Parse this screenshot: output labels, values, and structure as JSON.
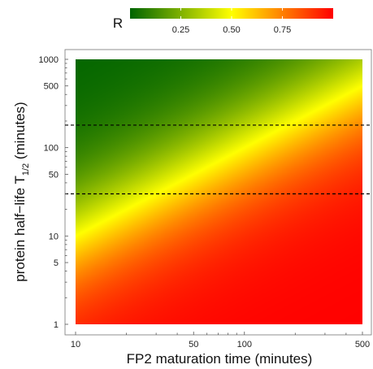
{
  "chart_data": {
    "type": "heatmap",
    "title": "",
    "colorbar": {
      "title": "R",
      "ticks": [
        0.25,
        0.5,
        0.75
      ],
      "tick_labels": [
        "0.25",
        "0.50",
        "0.75"
      ],
      "range": [
        0,
        1
      ],
      "colors": [
        "#006400",
        "#ffff00",
        "#ff0000"
      ]
    },
    "x_axis": {
      "label": "FP2 maturation time (minutes)",
      "scale": "log",
      "range": [
        10,
        500
      ],
      "ticks": [
        10,
        50,
        100,
        500
      ],
      "tick_labels": [
        "10",
        "50",
        "100",
        "500"
      ]
    },
    "y_axis": {
      "label_main": "protein half−life T",
      "label_sub": "1/2",
      "label_tail": " (minutes)",
      "scale": "log",
      "range": [
        1,
        1000
      ],
      "ticks": [
        1,
        5,
        10,
        50,
        100,
        500,
        1000
      ],
      "tick_labels": [
        "1",
        "5",
        "10",
        "50",
        "100",
        "500",
        "1000"
      ]
    },
    "value_function": "R = m / (m + T1/2)",
    "reference_lines": [
      {
        "type": "horizontal",
        "style": "dashed",
        "y": 180
      },
      {
        "type": "horizontal",
        "style": "dashed",
        "y": 30
      }
    ],
    "grid": false,
    "legend": "colorbar top"
  }
}
